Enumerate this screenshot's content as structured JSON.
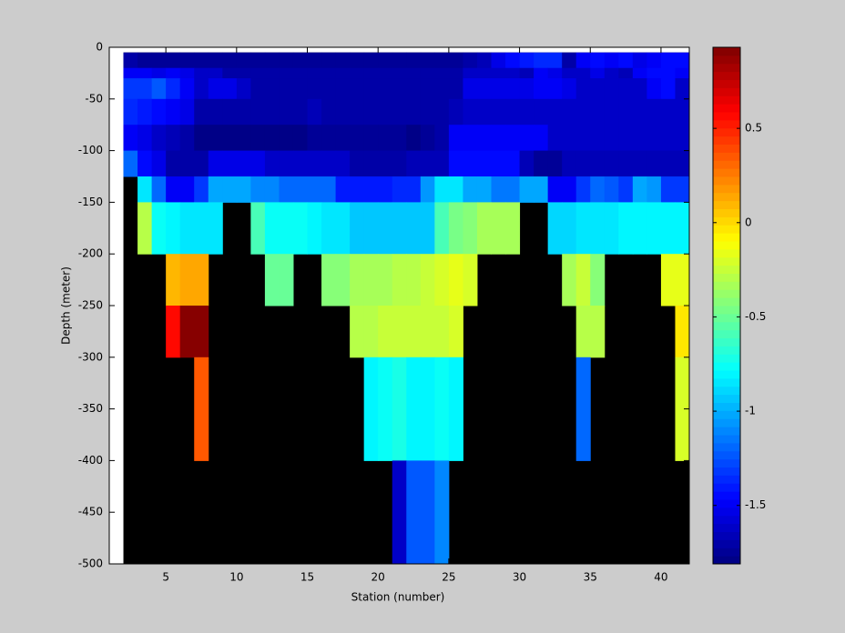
{
  "chart_data": {
    "type": "heatmap",
    "x_label": "Station (number)",
    "y_label": "Depth (meter)",
    "xlim": [
      1,
      42
    ],
    "ylim": [
      -500,
      0
    ],
    "xticks": [
      5,
      10,
      15,
      20,
      25,
      30,
      35,
      40
    ],
    "yticks": [
      0,
      -50,
      -100,
      -150,
      -200,
      -250,
      -300,
      -350,
      -400,
      -450,
      -500
    ],
    "x_edges": [
      2,
      3,
      4,
      5,
      6,
      7,
      8,
      9,
      10,
      11,
      12,
      13,
      14,
      15,
      16,
      17,
      18,
      19,
      20,
      21,
      22,
      23,
      24,
      25,
      26,
      27,
      28,
      29,
      30,
      31,
      32,
      33,
      34,
      35,
      36,
      37,
      38,
      39,
      40,
      41,
      42
    ],
    "y_edges": [
      -5,
      -20,
      -30,
      -50,
      -75,
      -100,
      -125,
      -150,
      -200,
      -250,
      -300,
      -400,
      -500
    ],
    "colormap": "jet",
    "missing_color": "#000000",
    "clim": [
      -1.81,
      0.93
    ],
    "colorbar_ticks": [
      0.5,
      0,
      -0.5,
      -1,
      -1.5
    ],
    "values": [
      [
        -1.7,
        -1.75,
        -1.75,
        -1.75,
        -1.75,
        -1.75,
        -1.75,
        -1.75,
        -1.75,
        -1.75,
        -1.75,
        -1.75,
        -1.75,
        -1.75,
        -1.75,
        -1.75,
        -1.75,
        -1.75,
        -1.75,
        -1.75,
        -1.75,
        -1.75,
        -1.75,
        -1.75,
        -1.7,
        -1.65,
        -1.55,
        -1.45,
        -1.4,
        -1.35,
        -1.35,
        -1.7,
        -1.5,
        -1.45,
        -1.5,
        -1.45,
        -1.55,
        -1.5,
        -1.45,
        -1.45
      ],
      [
        -1.5,
        -1.5,
        -1.55,
        -1.5,
        -1.55,
        -1.6,
        -1.6,
        -1.7,
        -1.7,
        -1.7,
        -1.7,
        -1.7,
        -1.7,
        -1.7,
        -1.7,
        -1.7,
        -1.7,
        -1.7,
        -1.7,
        -1.7,
        -1.7,
        -1.7,
        -1.7,
        -1.7,
        -1.6,
        -1.6,
        -1.6,
        -1.6,
        -1.65,
        -1.5,
        -1.55,
        -1.6,
        -1.6,
        -1.55,
        -1.6,
        -1.65,
        -1.5,
        -1.45,
        -1.45,
        -1.5
      ],
      [
        -1.3,
        -1.3,
        -1.25,
        -1.35,
        -1.5,
        -1.6,
        -1.55,
        -1.55,
        -1.6,
        -1.7,
        -1.7,
        -1.7,
        -1.7,
        -1.7,
        -1.7,
        -1.7,
        -1.7,
        -1.7,
        -1.7,
        -1.7,
        -1.7,
        -1.7,
        -1.7,
        -1.7,
        -1.55,
        -1.55,
        -1.55,
        -1.55,
        -1.55,
        -1.5,
        -1.5,
        -1.55,
        -1.6,
        -1.6,
        -1.6,
        -1.6,
        -1.6,
        -1.5,
        -1.45,
        -1.6
      ],
      [
        -1.35,
        -1.4,
        -1.45,
        -1.5,
        -1.55,
        -1.7,
        -1.7,
        -1.7,
        -1.7,
        -1.7,
        -1.7,
        -1.7,
        -1.7,
        -1.65,
        -1.7,
        -1.7,
        -1.7,
        -1.7,
        -1.7,
        -1.7,
        -1.7,
        -1.7,
        -1.7,
        -1.65,
        -1.6,
        -1.6,
        -1.6,
        -1.6,
        -1.6,
        -1.6,
        -1.6,
        -1.6,
        -1.6,
        -1.6,
        -1.6,
        -1.6,
        -1.6,
        -1.6,
        -1.6,
        -1.6
      ],
      [
        -1.5,
        -1.55,
        -1.6,
        -1.65,
        -1.7,
        -1.78,
        -1.78,
        -1.78,
        -1.78,
        -1.78,
        -1.8,
        -1.8,
        -1.8,
        -1.75,
        -1.75,
        -1.75,
        -1.75,
        -1.75,
        -1.75,
        -1.75,
        -1.8,
        -1.75,
        -1.7,
        -1.5,
        -1.5,
        -1.5,
        -1.5,
        -1.5,
        -1.5,
        -1.5,
        -1.6,
        -1.6,
        -1.6,
        -1.6,
        -1.6,
        -1.6,
        -1.6,
        -1.6,
        -1.6,
        -1.6
      ],
      [
        -1.2,
        -1.45,
        -1.55,
        -1.7,
        -1.7,
        -1.7,
        -1.55,
        -1.55,
        -1.55,
        -1.55,
        -1.6,
        -1.6,
        -1.6,
        -1.6,
        -1.6,
        -1.6,
        -1.7,
        -1.7,
        -1.7,
        -1.7,
        -1.65,
        -1.65,
        -1.65,
        -1.45,
        -1.45,
        -1.45,
        -1.45,
        -1.45,
        -1.65,
        -1.75,
        -1.75,
        -1.65,
        -1.65,
        -1.65,
        -1.65,
        -1.65,
        -1.65,
        -1.65,
        -1.65,
        -1.65
      ],
      [
        null,
        -0.85,
        -1.2,
        -1.5,
        -1.5,
        -1.3,
        -1.0,
        -1.0,
        -1.0,
        -1.1,
        -1.1,
        -1.2,
        -1.2,
        -1.2,
        -1.2,
        -1.4,
        -1.4,
        -1.4,
        -1.4,
        -1.35,
        -1.35,
        -1.05,
        -0.85,
        -0.85,
        -1.0,
        -1.0,
        -1.15,
        -1.15,
        -1.0,
        -1.0,
        -1.5,
        -1.5,
        -1.3,
        -1.2,
        -1.25,
        -1.3,
        -1.0,
        -1.05,
        -1.3,
        -1.3
      ],
      [
        null,
        -0.3,
        -0.75,
        -0.8,
        -0.85,
        -0.85,
        -0.85,
        null,
        null,
        -0.6,
        -0.75,
        -0.75,
        -0.75,
        -0.8,
        -0.85,
        -0.85,
        -0.95,
        -0.95,
        -0.95,
        -0.95,
        -0.95,
        -0.95,
        -0.6,
        -0.45,
        -0.4,
        -0.35,
        -0.35,
        -0.35,
        null,
        null,
        -0.9,
        -0.9,
        -0.85,
        -0.85,
        -0.85,
        -0.8,
        -0.8,
        -0.8,
        -0.8,
        -0.8
      ],
      [
        null,
        null,
        null,
        0.1,
        0.15,
        0.15,
        null,
        null,
        null,
        null,
        -0.5,
        -0.5,
        null,
        null,
        -0.4,
        -0.4,
        -0.35,
        -0.35,
        -0.35,
        -0.3,
        -0.3,
        -0.25,
        -0.2,
        -0.15,
        -0.2,
        null,
        null,
        null,
        null,
        null,
        null,
        -0.35,
        -0.25,
        -0.4,
        null,
        null,
        null,
        null,
        -0.15,
        -0.15
      ],
      [
        null,
        null,
        null,
        0.55,
        0.9,
        0.9,
        null,
        null,
        null,
        null,
        null,
        null,
        null,
        null,
        null,
        null,
        -0.3,
        -0.3,
        -0.25,
        -0.25,
        -0.25,
        -0.25,
        -0.25,
        -0.2,
        null,
        null,
        null,
        null,
        null,
        null,
        null,
        null,
        -0.3,
        -0.3,
        null,
        null,
        null,
        null,
        null,
        -0.05
      ],
      [
        null,
        null,
        null,
        null,
        null,
        0.35,
        null,
        null,
        null,
        null,
        null,
        null,
        null,
        null,
        null,
        null,
        null,
        -0.8,
        -0.75,
        -0.7,
        -0.8,
        -0.8,
        -0.75,
        -0.8,
        null,
        null,
        null,
        null,
        null,
        null,
        null,
        null,
        -1.2,
        null,
        null,
        null,
        null,
        null,
        null,
        -0.2
      ],
      [
        null,
        null,
        null,
        null,
        null,
        null,
        null,
        null,
        null,
        null,
        null,
        null,
        null,
        null,
        null,
        null,
        null,
        null,
        null,
        -1.6,
        -1.25,
        -1.25,
        -1.1,
        null,
        null,
        null,
        null,
        null,
        null,
        null,
        null,
        null,
        null,
        null,
        null,
        null,
        null,
        null,
        null,
        null
      ]
    ]
  }
}
